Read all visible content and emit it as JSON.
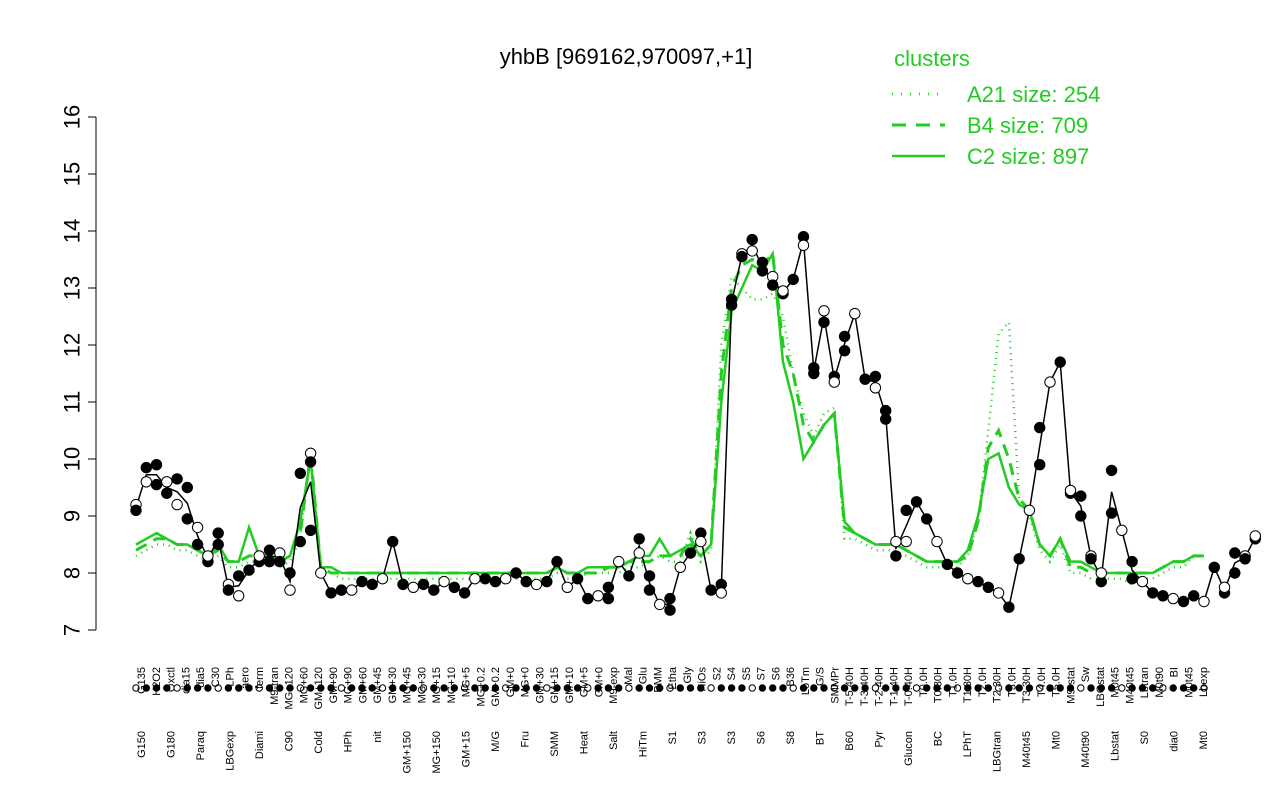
{
  "chart_data": {
    "type": "line",
    "title": "yhbB [969162,970097,+1]",
    "ylim": [
      7,
      16
    ],
    "yticks": [
      7,
      8,
      9,
      10,
      11,
      12,
      13,
      14,
      15,
      16
    ],
    "categories": [
      "G150",
      "G135",
      "G180",
      "H2O2",
      "Paraq",
      "Oxctl",
      "LBGexp",
      "dia15",
      "Diami",
      "dia5",
      "C90",
      "C30",
      "Cold",
      "LPh",
      "HPh",
      "aero",
      "nit",
      "ferm",
      "GM+150",
      "M9-tran",
      "MG+150",
      "MG+120",
      "MG+60",
      "GM+120",
      "GM+90",
      "MG+90",
      "GM+60",
      "GM+45",
      "GM+30",
      "MG+45",
      "MG+30",
      "GM+15",
      "MG+15",
      "GM+10",
      "MG+10",
      "GM+5",
      "MG+5",
      "MG+0.2",
      "GM+0.2",
      "GM+0",
      "MG+0",
      "Glucon",
      "M/G",
      "M9-exp",
      "Mal",
      "Fru",
      "Glu",
      "SMM",
      "BMM",
      "Heat",
      "Salt",
      "Etha",
      "Gly",
      "HiTm",
      "HiOs",
      "S1",
      "S2",
      "S3",
      "S4",
      "S5",
      "S6",
      "S7",
      "S8",
      "BT",
      "B36",
      "B60",
      "LoTm",
      "Pyr",
      "G/S",
      "Glucon",
      "SMMPr",
      "T-5.40H",
      "T-3.40H",
      "T-2.40H",
      "T-1.40H",
      "T-0.40H",
      "T0.0H",
      "T0.30H",
      "T1.0H",
      "T1.30H",
      "T2.0H",
      "T2.30H",
      "T3.0H",
      "T3.30H",
      "T4.0H",
      "T5.0H",
      "M9-stat",
      "BC",
      "Sw",
      "LPhT",
      "LBGstat",
      "LBGtran",
      "M0t45",
      "M40t45",
      "Lbtran",
      "Mt0",
      "M40t90",
      "M0t90",
      "Lbstat",
      "BI",
      "S0",
      "dia0",
      "M0t45",
      "Lbexp",
      "Mt0"
    ],
    "x_label_rows": {
      "top": [
        "G135",
        "H2O2",
        "Oxctl",
        "dia15",
        "dia5",
        "C30",
        "LPh",
        "aero",
        "ferm",
        "M9-tran",
        "MG+120",
        "MG+60",
        "GM+120",
        "GM+90",
        "MG+90",
        "GM+60",
        "GM+45",
        "GM+30",
        "MG+45",
        "MG+30",
        "MG+15",
        "MG+10",
        "MG+5",
        "MG+0.2",
        "GM+0.2",
        "GM+0",
        "MG+0",
        "GM+30",
        "GM+15",
        "GM+10",
        "GM+5",
        "GM+0",
        "M9-exp",
        "Mal",
        "Glu",
        "BMM",
        "Etha",
        "Gly",
        "HiOs",
        "S2",
        "S4",
        "S5",
        "S7",
        "S6",
        "B36",
        "LoTm",
        "G/S",
        "SMMPr",
        "T-5.40H",
        "T-3.40H",
        "T-2.40H",
        "T-1.40H",
        "T-0.40H",
        "T0.0H",
        "T0.30H",
        "T1.0H",
        "T1.30H",
        "T2.0H",
        "T2.30H",
        "T3.0H",
        "T3.30H",
        "T4.0H",
        "T5.0H",
        "M9-stat",
        "Sw",
        "LBGstat",
        "M0t45",
        "M40t45",
        "Lbtran",
        "M0t90",
        "BI",
        "M0t45",
        "Lbexp"
      ],
      "bottom": [
        "G150",
        "G180",
        "Paraq",
        "LBGexp",
        "Diami",
        "C90",
        "Cold",
        "HPh",
        "nit",
        "GM+150",
        "MG+150",
        "GM+15",
        "M/G",
        "Fru",
        "SMM",
        "Heat",
        "Salt",
        "HiTm",
        "S1",
        "S3",
        "S3",
        "S6",
        "S8",
        "BT",
        "B60",
        "Pyr",
        "Glucon",
        "BC",
        "LPhT",
        "LBGtran",
        "M40t45",
        "Mt0",
        "M40t90",
        "Lbstat",
        "S0",
        "dia0",
        "Mt0"
      ]
    },
    "series": [
      {
        "name": "A21 size: 254",
        "style": "dotted",
        "values": [
          8.3,
          8.4,
          8.5,
          8.5,
          8.4,
          8.4,
          8.3,
          8.2,
          8.3,
          8.1,
          8.1,
          8.2,
          8.2,
          8.2,
          8.1,
          8.2,
          8.6,
          10.2,
          8.0,
          8.0,
          7.9,
          7.9,
          7.9,
          7.9,
          7.9,
          7.9,
          7.9,
          7.9,
          7.9,
          7.9,
          7.9,
          7.9,
          7.9,
          7.9,
          7.9,
          7.9,
          7.9,
          7.9,
          7.9,
          7.9,
          7.9,
          8.0,
          7.9,
          7.9,
          8.0,
          8.0,
          8.0,
          8.0,
          8.1,
          8.1,
          8.2,
          8.3,
          8.2,
          8.2,
          8.7,
          8.2,
          8.4,
          12.0,
          13.2,
          13.0,
          12.8,
          12.8,
          12.9,
          12.5,
          11.5,
          10.8,
          10.4,
          10.8,
          10.9,
          8.6,
          8.6,
          8.5,
          8.4,
          8.4,
          8.4,
          8.3,
          8.2,
          8.1,
          8.1,
          8.1,
          8.1,
          8.3,
          8.9,
          10.5,
          12.2,
          12.4,
          9.3,
          9.0,
          8.4,
          8.2,
          8.5,
          8.0,
          8.0,
          7.9,
          7.9,
          7.9,
          7.9,
          7.8,
          7.9,
          7.9,
          8.0,
          8.1,
          8.1,
          8.3,
          8.3
        ]
      },
      {
        "name": "B4 size: 709",
        "style": "dashed",
        "values": [
          8.4,
          8.5,
          8.6,
          8.6,
          8.5,
          8.5,
          8.4,
          8.3,
          8.4,
          8.2,
          8.2,
          8.3,
          8.3,
          8.3,
          8.2,
          8.3,
          8.7,
          10.1,
          8.1,
          8.0,
          8.0,
          8.0,
          8.0,
          8.0,
          8.0,
          8.0,
          8.0,
          8.0,
          8.0,
          8.0,
          8.0,
          8.0,
          8.0,
          8.0,
          8.0,
          8.0,
          8.0,
          8.0,
          8.0,
          8.0,
          8.0,
          8.1,
          8.0,
          8.0,
          8.0,
          8.0,
          8.1,
          8.1,
          8.2,
          8.2,
          8.2,
          8.3,
          8.3,
          8.3,
          8.6,
          8.3,
          8.5,
          11.5,
          13.0,
          13.4,
          13.5,
          13.4,
          13.6,
          12.0,
          11.5,
          10.6,
          10.3,
          10.6,
          10.8,
          8.8,
          8.7,
          8.6,
          8.5,
          8.5,
          8.5,
          8.4,
          8.3,
          8.2,
          8.2,
          8.2,
          8.2,
          8.3,
          8.9,
          10.2,
          10.5,
          10.0,
          9.3,
          9.1,
          8.5,
          8.3,
          8.6,
          8.1,
          8.1,
          8.0,
          8.0,
          8.0,
          8.0,
          8.0,
          8.0,
          8.0,
          8.1,
          8.2,
          8.2,
          8.3,
          8.3
        ]
      },
      {
        "name": "C2 size: 897",
        "style": "solid",
        "values": [
          8.5,
          8.6,
          8.7,
          8.6,
          8.5,
          8.5,
          8.4,
          8.3,
          8.5,
          8.2,
          8.2,
          8.8,
          8.3,
          8.3,
          8.2,
          8.3,
          8.9,
          10.0,
          8.1,
          8.1,
          8.0,
          8.0,
          8.0,
          8.0,
          8.0,
          8.0,
          8.0,
          8.0,
          8.0,
          8.0,
          8.0,
          8.0,
          8.0,
          8.0,
          8.0,
          8.0,
          8.0,
          8.0,
          8.0,
          8.0,
          8.0,
          8.1,
          8.0,
          8.0,
          8.1,
          8.1,
          8.1,
          8.1,
          8.2,
          8.3,
          8.3,
          8.6,
          8.3,
          8.4,
          8.5,
          8.3,
          8.5,
          11.0,
          12.6,
          13.0,
          13.4,
          13.3,
          13.6,
          11.7,
          11.0,
          10.0,
          10.3,
          10.6,
          10.8,
          8.9,
          8.7,
          8.6,
          8.5,
          8.5,
          8.5,
          8.4,
          8.3,
          8.2,
          8.2,
          8.2,
          8.2,
          8.4,
          9.0,
          10.0,
          10.1,
          9.5,
          9.2,
          9.1,
          8.5,
          8.3,
          8.6,
          8.2,
          8.2,
          8.1,
          8.0,
          8.0,
          8.0,
          8.0,
          8.0,
          8.0,
          8.1,
          8.2,
          8.2,
          8.3,
          8.3
        ]
      }
    ],
    "points": [
      {
        "i": 0,
        "v": 9.2
      },
      {
        "i": 0,
        "v": 9.1
      },
      {
        "i": 1,
        "v": 9.85
      },
      {
        "i": 1,
        "v": 9.6
      },
      {
        "i": 2,
        "v": 9.9
      },
      {
        "i": 2,
        "v": 9.55
      },
      {
        "i": 3,
        "v": 9.6
      },
      {
        "i": 3,
        "v": 9.4
      },
      {
        "i": 4,
        "v": 9.65
      },
      {
        "i": 4,
        "v": 9.2
      },
      {
        "i": 5,
        "v": 9.5
      },
      {
        "i": 5,
        "v": 8.95
      },
      {
        "i": 6,
        "v": 8.8
      },
      {
        "i": 6,
        "v": 8.5
      },
      {
        "i": 7,
        "v": 8.2
      },
      {
        "i": 7,
        "v": 8.3
      },
      {
        "i": 8,
        "v": 8.7
      },
      {
        "i": 8,
        "v": 8.5
      },
      {
        "i": 9,
        "v": 7.8
      },
      {
        "i": 9,
        "v": 7.7
      },
      {
        "i": 10,
        "v": 7.95
      },
      {
        "i": 10,
        "v": 7.6
      },
      {
        "i": 11,
        "v": 8.05
      },
      {
        "i": 12,
        "v": 8.2
      },
      {
        "i": 12,
        "v": 8.3
      },
      {
        "i": 13,
        "v": 8.4
      },
      {
        "i": 13,
        "v": 8.2
      },
      {
        "i": 14,
        "v": 8.35
      },
      {
        "i": 14,
        "v": 8.2
      },
      {
        "i": 15,
        "v": 8.0
      },
      {
        "i": 15,
        "v": 7.7
      },
      {
        "i": 16,
        "v": 9.75
      },
      {
        "i": 16,
        "v": 8.55
      },
      {
        "i": 17,
        "v": 10.1
      },
      {
        "i": 17,
        "v": 9.95
      },
      {
        "i": 17,
        "v": 8.75
      },
      {
        "i": 18,
        "v": 8.0
      },
      {
        "i": 19,
        "v": 7.65
      },
      {
        "i": 20,
        "v": 7.7
      },
      {
        "i": 21,
        "v": 7.7
      },
      {
        "i": 22,
        "v": 7.85
      },
      {
        "i": 23,
        "v": 7.8
      },
      {
        "i": 24,
        "v": 7.9
      },
      {
        "i": 25,
        "v": 8.55
      },
      {
        "i": 26,
        "v": 7.8
      },
      {
        "i": 27,
        "v": 7.75
      },
      {
        "i": 28,
        "v": 7.8
      },
      {
        "i": 29,
        "v": 7.7
      },
      {
        "i": 30,
        "v": 7.85
      },
      {
        "i": 31,
        "v": 7.75
      },
      {
        "i": 32,
        "v": 7.65
      },
      {
        "i": 33,
        "v": 7.9
      },
      {
        "i": 34,
        "v": 7.9
      },
      {
        "i": 35,
        "v": 7.85
      },
      {
        "i": 36,
        "v": 7.9
      },
      {
        "i": 37,
        "v": 8.0
      },
      {
        "i": 38,
        "v": 7.85
      },
      {
        "i": 39,
        "v": 7.8
      },
      {
        "i": 40,
        "v": 7.85
      },
      {
        "i": 41,
        "v": 8.2
      },
      {
        "i": 42,
        "v": 7.75
      },
      {
        "i": 43,
        "v": 7.9
      },
      {
        "i": 44,
        "v": 7.55
      },
      {
        "i": 45,
        "v": 7.6
      },
      {
        "i": 46,
        "v": 7.75
      },
      {
        "i": 46,
        "v": 7.55
      },
      {
        "i": 47,
        "v": 8.2
      },
      {
        "i": 48,
        "v": 7.95
      },
      {
        "i": 49,
        "v": 8.6
      },
      {
        "i": 49,
        "v": 8.35
      },
      {
        "i": 50,
        "v": 7.95
      },
      {
        "i": 50,
        "v": 7.7
      },
      {
        "i": 51,
        "v": 7.45
      },
      {
        "i": 52,
        "v": 7.35
      },
      {
        "i": 52,
        "v": 7.55
      },
      {
        "i": 53,
        "v": 8.1
      },
      {
        "i": 54,
        "v": 8.35
      },
      {
        "i": 55,
        "v": 8.7
      },
      {
        "i": 55,
        "v": 8.55
      },
      {
        "i": 56,
        "v": 7.7
      },
      {
        "i": 57,
        "v": 7.8
      },
      {
        "i": 57,
        "v": 7.65
      },
      {
        "i": 58,
        "v": 12.7
      },
      {
        "i": 58,
        "v": 12.8
      },
      {
        "i": 59,
        "v": 13.6
      },
      {
        "i": 59,
        "v": 13.55
      },
      {
        "i": 60,
        "v": 13.85
      },
      {
        "i": 60,
        "v": 13.65
      },
      {
        "i": 61,
        "v": 13.45
      },
      {
        "i": 61,
        "v": 13.3
      },
      {
        "i": 62,
        "v": 13.2
      },
      {
        "i": 62,
        "v": 13.05
      },
      {
        "i": 63,
        "v": 12.9
      },
      {
        "i": 63,
        "v": 12.95
      },
      {
        "i": 64,
        "v": 13.15
      },
      {
        "i": 65,
        "v": 13.9
      },
      {
        "i": 65,
        "v": 13.75
      },
      {
        "i": 66,
        "v": 11.6
      },
      {
        "i": 66,
        "v": 11.5
      },
      {
        "i": 67,
        "v": 12.6
      },
      {
        "i": 67,
        "v": 12.4
      },
      {
        "i": 68,
        "v": 11.45
      },
      {
        "i": 68,
        "v": 11.35
      },
      {
        "i": 69,
        "v": 12.15
      },
      {
        "i": 69,
        "v": 11.9
      },
      {
        "i": 70,
        "v": 12.55
      },
      {
        "i": 71,
        "v": 11.4
      },
      {
        "i": 72,
        "v": 11.45
      },
      {
        "i": 72,
        "v": 11.25
      },
      {
        "i": 73,
        "v": 10.85
      },
      {
        "i": 73,
        "v": 10.7
      },
      {
        "i": 74,
        "v": 8.55
      },
      {
        "i": 74,
        "v": 8.3
      },
      {
        "i": 75,
        "v": 9.1
      },
      {
        "i": 75,
        "v": 8.55
      },
      {
        "i": 76,
        "v": 9.25
      },
      {
        "i": 77,
        "v": 8.95
      },
      {
        "i": 78,
        "v": 8.55
      },
      {
        "i": 79,
        "v": 8.15
      },
      {
        "i": 80,
        "v": 8.0
      },
      {
        "i": 81,
        "v": 7.9
      },
      {
        "i": 82,
        "v": 7.85
      },
      {
        "i": 83,
        "v": 7.75
      },
      {
        "i": 84,
        "v": 7.65
      },
      {
        "i": 85,
        "v": 7.4
      },
      {
        "i": 86,
        "v": 8.25
      },
      {
        "i": 87,
        "v": 9.1
      },
      {
        "i": 88,
        "v": 9.9
      },
      {
        "i": 88,
        "v": 10.55
      },
      {
        "i": 89,
        "v": 11.35
      },
      {
        "i": 90,
        "v": 11.7
      },
      {
        "i": 91,
        "v": 9.4
      },
      {
        "i": 91,
        "v": 9.45
      },
      {
        "i": 92,
        "v": 9.35
      },
      {
        "i": 92,
        "v": 9.0
      },
      {
        "i": 93,
        "v": 8.3
      },
      {
        "i": 93,
        "v": 8.25
      },
      {
        "i": 94,
        "v": 7.85
      },
      {
        "i": 94,
        "v": 8.0
      },
      {
        "i": 95,
        "v": 9.8
      },
      {
        "i": 95,
        "v": 9.05
      },
      {
        "i": 96,
        "v": 8.75
      },
      {
        "i": 97,
        "v": 7.9
      },
      {
        "i": 97,
        "v": 8.2
      },
      {
        "i": 98,
        "v": 7.85
      },
      {
        "i": 99,
        "v": 7.65
      },
      {
        "i": 100,
        "v": 7.6
      },
      {
        "i": 101,
        "v": 7.55
      },
      {
        "i": 102,
        "v": 7.5
      },
      {
        "i": 103,
        "v": 7.6
      },
      {
        "i": 104,
        "v": 7.5
      },
      {
        "i": 105,
        "v": 8.1
      },
      {
        "i": 106,
        "v": 7.65
      },
      {
        "i": 106,
        "v": 7.75
      },
      {
        "i": 107,
        "v": 8.0
      },
      {
        "i": 107,
        "v": 8.35
      },
      {
        "i": 108,
        "v": 8.3
      },
      {
        "i": 108,
        "v": 8.25
      },
      {
        "i": 109,
        "v": 8.6
      },
      {
        "i": 109,
        "v": 8.65
      }
    ],
    "line_color": "#000000",
    "series_color": "#22cc22",
    "legend": {
      "title": "clusters",
      "position": "top-right"
    },
    "grid": false
  }
}
